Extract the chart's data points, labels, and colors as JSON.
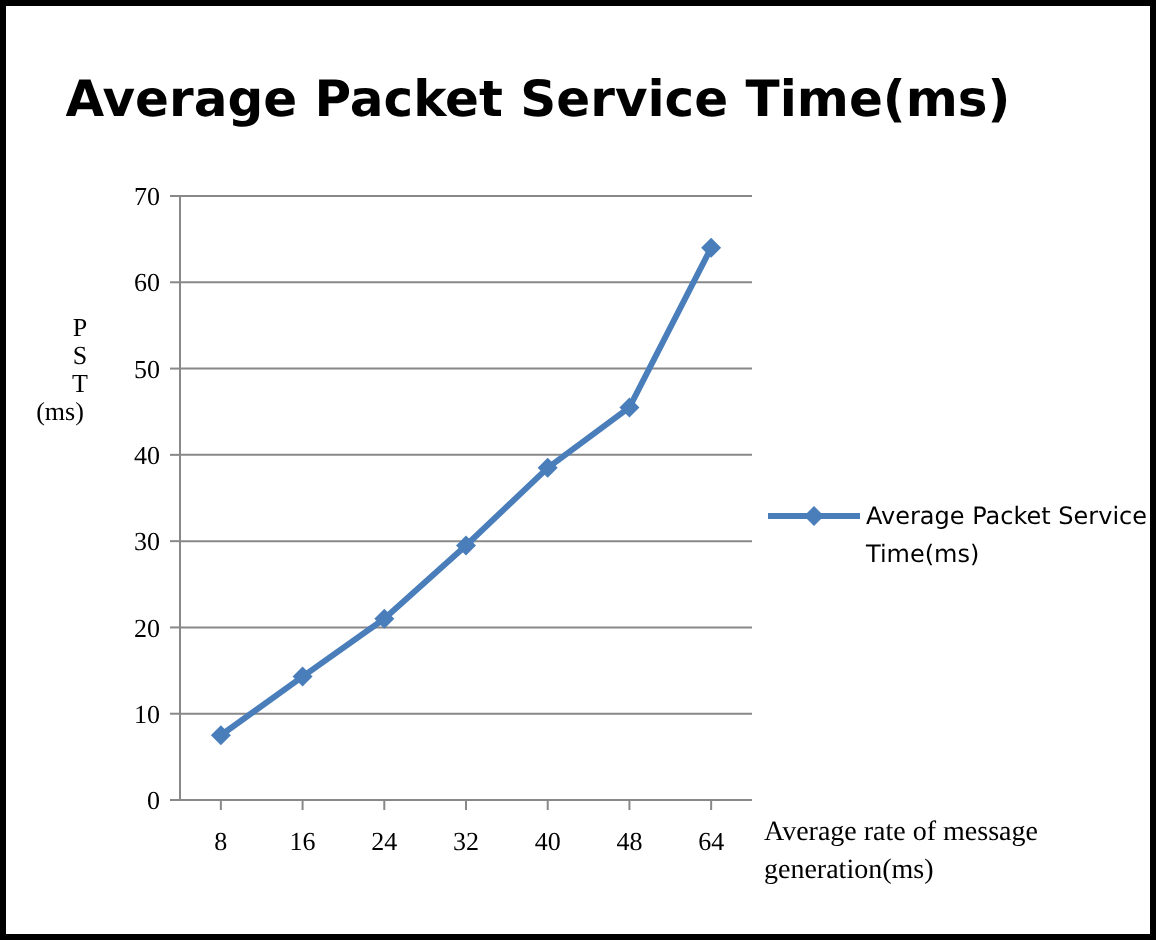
{
  "chart_data": {
    "type": "line",
    "title": "Average Packet Service Time(ms)",
    "xlabel": "Average rate of message generation(ms)",
    "ylabel": "PST (ms)",
    "categories": [
      "8",
      "16",
      "24",
      "32",
      "40",
      "48",
      "64"
    ],
    "series": [
      {
        "name": "Average Packet Service Time(ms)",
        "color": "#4a7ebb",
        "values": [
          7.5,
          14.3,
          21,
          29.5,
          38.5,
          45.5,
          64
        ]
      }
    ],
    "ylim": [
      0,
      70
    ],
    "yticks": [
      0,
      10,
      20,
      30,
      40,
      50,
      60,
      70
    ],
    "grid": "y",
    "legend": "right",
    "marker": "diamond",
    "line_style": "solid"
  }
}
